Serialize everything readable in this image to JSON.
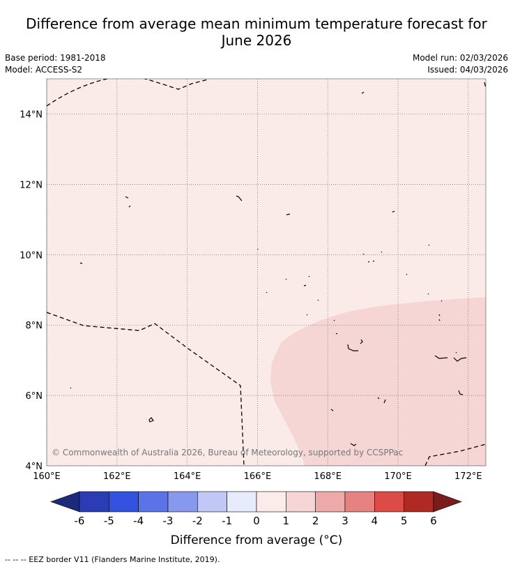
{
  "title": {
    "line1": "Difference from average mean minimum temperature forecast for",
    "line2": "June 2026"
  },
  "meta": {
    "base_period": "Base period: 1981-2018",
    "model": "Model: ACCESS-S2",
    "model_run": "Model run: 02/03/2026",
    "issued": "Issued: 04/03/2026"
  },
  "map": {
    "lat_labels": [
      "14°N",
      "12°N",
      "10°N",
      "8°N",
      "6°N",
      "4°N"
    ],
    "lon_labels": [
      "160°E",
      "162°E",
      "164°E",
      "166°E",
      "168°E",
      "170°E",
      "172°E"
    ],
    "lat_values": [
      14,
      12,
      10,
      8,
      6,
      4
    ],
    "lon_values": [
      160,
      162,
      164,
      166,
      168,
      170,
      172
    ],
    "extent": {
      "lon": [
        160,
        172.5
      ],
      "lat": [
        4,
        15
      ]
    },
    "base_anomaly_class": "0 to 1",
    "warm_anomaly_class": "1 to 2",
    "copyright": "© Commonwealth of Australia 2026, Bureau of Meteorology, supported by CCSPPac"
  },
  "colorbar": {
    "ticks": [
      "-6",
      "-5",
      "-4",
      "-3",
      "-2",
      "-1",
      "0",
      "1",
      "2",
      "3",
      "4",
      "5",
      "6"
    ],
    "colors": [
      "#2a3db4",
      "#3352e0",
      "#5a73e6",
      "#8699ec",
      "#c0c8f5",
      "#e8ebfc",
      "#fbecea",
      "#f5d5d5",
      "#eeaaa8",
      "#e6827f",
      "#dc4b45",
      "#b02a24"
    ],
    "low_extend_color": "#1c2a78",
    "high_extend_color": "#7a1c1c",
    "label": "Difference from average (°C)"
  },
  "legend": {
    "eez": "--  --  -- EEZ border V11 (Flanders Marine Institute, 2019)."
  }
}
